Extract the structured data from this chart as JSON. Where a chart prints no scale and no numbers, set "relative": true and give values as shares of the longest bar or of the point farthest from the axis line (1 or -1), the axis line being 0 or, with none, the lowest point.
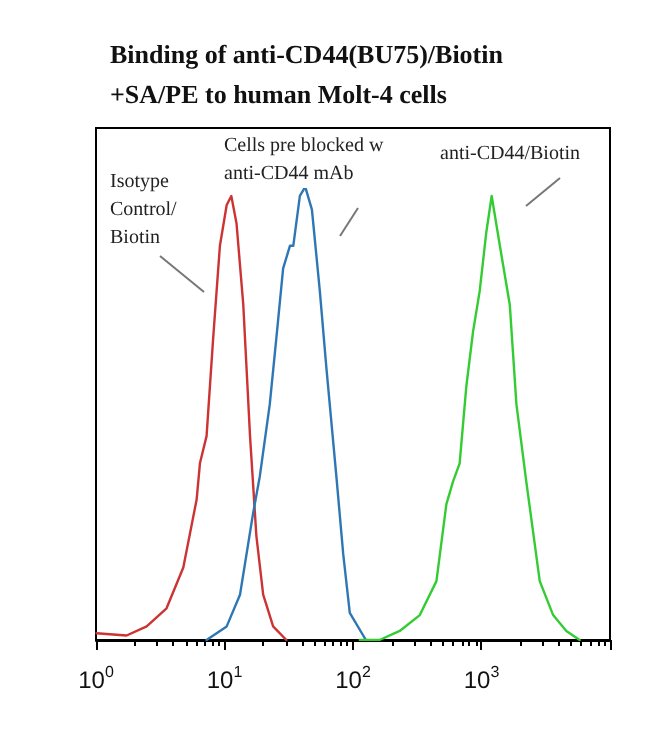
{
  "chart_data": {
    "type": "line",
    "title": "Binding of anti-CD44(BU75)/Biotin\n+SA/PE to human Molt-4 cells",
    "relative": true,
    "log": "x",
    "xlim": [
      1,
      10000
    ],
    "xticks": [
      {
        "value": 1,
        "label": "10$^{0}$"
      },
      {
        "value": 10,
        "label": "10$^{1}$"
      },
      {
        "value": 100,
        "label": "10$^{2}$"
      },
      {
        "value": 1000,
        "label": "10$^{3}$"
      },
      {
        "value": 10000,
        "label": null
      }
    ],
    "marker": "none",
    "line_style": "solid",
    "grid": false,
    "annotations": [
      "Isotype\nControl/\nBiotin",
      "Cells pre blocked w\nanti-CD44 mAb",
      "anti-CD44/Biotin"
    ],
    "series": [
      {
        "color": "#cc3333",
        "x": [
          1.01,
          1.73,
          2.48,
          3.54,
          4.78,
          6.07,
          6.44,
          7.25,
          8.18,
          9.21,
          10.4,
          11.3,
          12.4,
          14.0,
          15.8,
          17.7,
          20.0,
          23.9,
          30.3
        ],
        "values": [
          0.015,
          0.01,
          0.03,
          0.07,
          0.16,
          0.31,
          0.39,
          0.45,
          0.67,
          0.87,
          0.96,
          0.98,
          0.92,
          0.74,
          0.45,
          0.23,
          0.1,
          0.03,
          0
        ]
      },
      {
        "color": "#2f77b4",
        "x": [
          7.25,
          10.4,
          13.2,
          16.7,
          18.8,
          22.5,
          25.4,
          28.6,
          32.3,
          34.3,
          38.6,
          42.5,
          47.9,
          55.2,
          62.1,
          74.3,
          83.9,
          94.4,
          126
        ],
        "values": [
          0,
          0.03,
          0.1,
          0.28,
          0.36,
          0.52,
          0.67,
          0.82,
          0.87,
          0.87,
          0.98,
          1,
          0.95,
          0.77,
          0.6,
          0.36,
          0.19,
          0.06,
          0
        ]
      },
      {
        "color": "#33cc33",
        "x": [
          113,
          161,
          231,
          331,
          446,
          533,
          601,
          676,
          762,
          859,
          968,
          1090,
          1200,
          1390,
          1660,
          1870,
          2230,
          2840,
          3610,
          4570,
          5810
        ],
        "values": [
          0,
          0,
          0.02,
          0.055,
          0.13,
          0.3,
          0.35,
          0.39,
          0.56,
          0.68,
          0.77,
          0.9,
          0.98,
          0.87,
          0.74,
          0.52,
          0.35,
          0.13,
          0.055,
          0.02,
          0
        ]
      }
    ]
  }
}
